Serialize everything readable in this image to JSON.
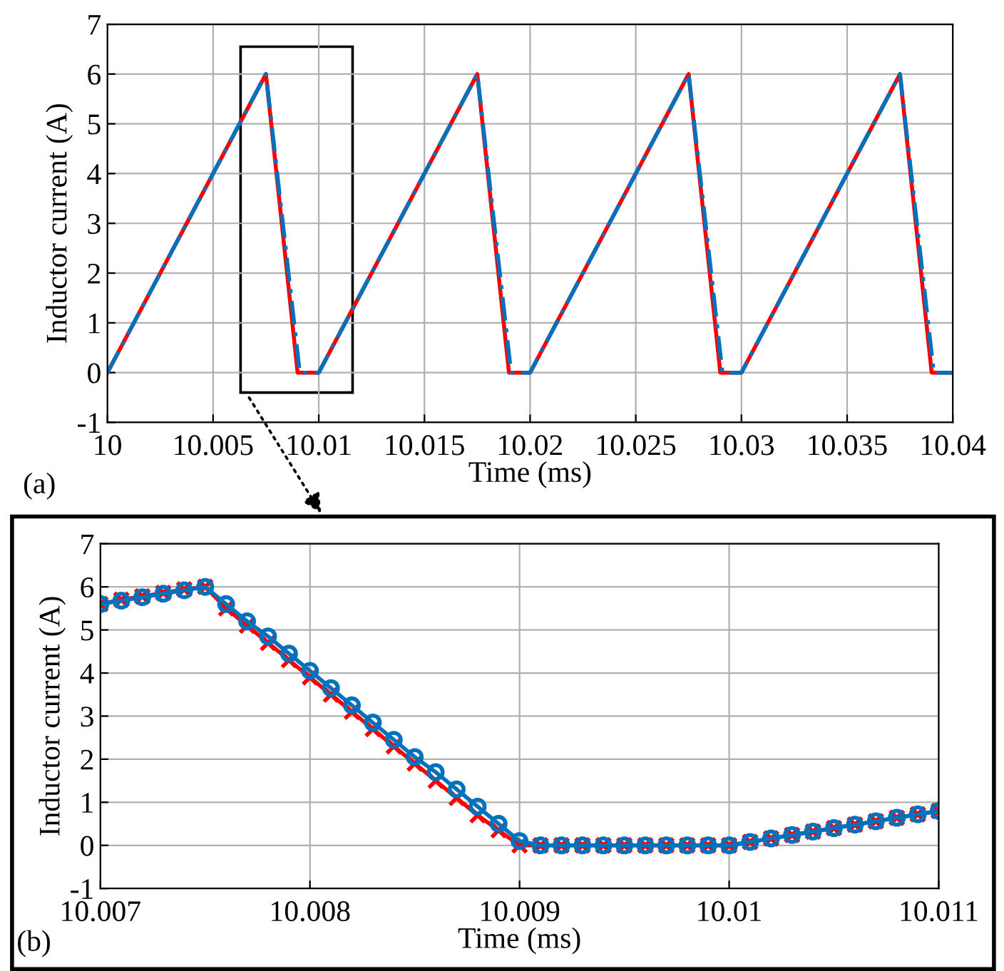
{
  "chart_data": [
    {
      "type": "line",
      "xlabel": "Time (ms)",
      "ylabel": "Inductor current (A)",
      "xlim": [
        10,
        10.04
      ],
      "ylim": [
        -1,
        7
      ],
      "xticks": [
        10,
        10.005,
        10.01,
        10.015,
        10.02,
        10.025,
        10.03,
        10.035,
        10.04
      ],
      "yticks": [
        -1,
        0,
        1,
        2,
        3,
        4,
        5,
        6,
        7
      ],
      "grid": true,
      "annotations": [
        "(a)"
      ],
      "series": [
        {
          "color": "#ff0000",
          "line_style": "solid",
          "x": [
            10,
            10.0075,
            10.009,
            10.01,
            10.0175,
            10.019,
            10.02,
            10.0275,
            10.029,
            10.03,
            10.0375,
            10.039,
            10.04
          ],
          "values": [
            0,
            6,
            0,
            0,
            6,
            0,
            0,
            6,
            0,
            0,
            6,
            0,
            0
          ]
        },
        {
          "color": "#0072bd",
          "line_style": "dashed",
          "x": [
            10,
            10.0075,
            10.0091,
            10.01,
            10.0175,
            10.0191,
            10.02,
            10.0275,
            10.0291,
            10.03,
            10.0375,
            10.0391,
            10.04
          ],
          "values": [
            0,
            6,
            0,
            0,
            6,
            0,
            0,
            6,
            0,
            0,
            6,
            0,
            0
          ]
        }
      ]
    },
    {
      "type": "line",
      "xlabel": "Time (ms)",
      "ylabel": "Inductor current (A)",
      "xlim": [
        10.007,
        10.011
      ],
      "ylim": [
        -1,
        7
      ],
      "xticks": [
        10.007,
        10.008,
        10.009,
        10.01,
        10.011
      ],
      "yticks": [
        -1,
        0,
        1,
        2,
        3,
        4,
        5,
        6,
        7
      ],
      "grid": true,
      "annotations": [
        "(b)"
      ],
      "series": [
        {
          "color": "#ff0000",
          "line_style": "solid",
          "marker": "cross",
          "x": [
            10.007,
            10.0071,
            10.0072,
            10.0073,
            10.0074,
            10.0075,
            10.0076,
            10.0077,
            10.0078,
            10.0079,
            10.008,
            10.0081,
            10.0082,
            10.0083,
            10.0084,
            10.0085,
            10.0086,
            10.0087,
            10.0088,
            10.0089,
            10.009,
            10.0091,
            10.0092,
            10.0093,
            10.0094,
            10.0095,
            10.0096,
            10.0097,
            10.0098,
            10.0099,
            10.01,
            10.0101,
            10.0102,
            10.0103,
            10.0104,
            10.0105,
            10.0106,
            10.0107,
            10.0108,
            10.0109,
            10.011
          ],
          "values": [
            5.6,
            5.7,
            5.78,
            5.86,
            5.94,
            6,
            5.5,
            5.1,
            4.7,
            4.3,
            3.9,
            3.5,
            3.1,
            2.7,
            2.3,
            1.9,
            1.5,
            1.1,
            0.7,
            0.35,
            0,
            0,
            0,
            0,
            0,
            0,
            0,
            0,
            0,
            0,
            0,
            0.08,
            0.16,
            0.24,
            0.32,
            0.4,
            0.48,
            0.56,
            0.64,
            0.72,
            0.8
          ]
        },
        {
          "color": "#0072bd",
          "line_style": "solid",
          "marker": "circle",
          "x": [
            10.007,
            10.0071,
            10.0072,
            10.0073,
            10.0074,
            10.0075,
            10.0076,
            10.0077,
            10.0078,
            10.0079,
            10.008,
            10.0081,
            10.0082,
            10.0083,
            10.0084,
            10.0085,
            10.0086,
            10.0087,
            10.0088,
            10.0089,
            10.009,
            10.0091,
            10.0092,
            10.0093,
            10.0094,
            10.0095,
            10.0096,
            10.0097,
            10.0098,
            10.0099,
            10.01,
            10.0101,
            10.0102,
            10.0103,
            10.0104,
            10.0105,
            10.0106,
            10.0107,
            10.0108,
            10.0109,
            10.011
          ],
          "values": [
            5.6,
            5.68,
            5.76,
            5.84,
            5.92,
            6,
            5.6,
            5.2,
            4.85,
            4.45,
            4.05,
            3.65,
            3.25,
            2.85,
            2.45,
            2.05,
            1.7,
            1.3,
            0.9,
            0.5,
            0.1,
            0,
            0,
            0,
            0,
            0,
            0,
            0,
            0,
            0,
            0,
            0.08,
            0.16,
            0.24,
            0.32,
            0.4,
            0.48,
            0.56,
            0.64,
            0.72,
            0.8
          ]
        }
      ]
    }
  ]
}
